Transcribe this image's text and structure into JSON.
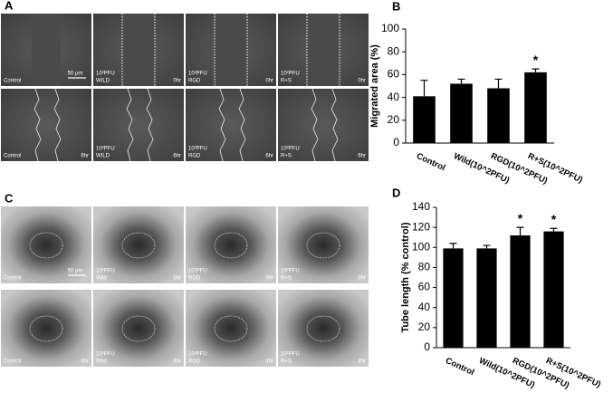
{
  "panels": [
    {
      "label": "A",
      "images": [
        {
          "left": [
            "Control"
          ],
          "scale": "50 μm"
        },
        {
          "left": [
            "10²PFU",
            "WILD"
          ],
          "right": "0hr"
        },
        {
          "left": [
            "10²PFU",
            "RGD"
          ],
          "right": "0hr"
        },
        {
          "left": [
            "10²PFU",
            "R+S"
          ],
          "right": "0hr"
        },
        {
          "left": [
            "Control"
          ],
          "right": "6hr"
        },
        {
          "left": [
            "10²PFU",
            "WILD"
          ],
          "right": "6hr"
        },
        {
          "left": [
            "10²PFU",
            "RGD"
          ],
          "right": "6hr"
        },
        {
          "left": [
            "10²PFU",
            "R+S"
          ],
          "right": "6hr"
        }
      ]
    },
    {
      "label": "C",
      "images": [
        {
          "left": [
            "Control"
          ],
          "scale": "50 μm"
        },
        {
          "left": [
            "10²PFU",
            "Wild"
          ],
          "right": "0hr"
        },
        {
          "left": [
            "10²PFU",
            "RGD"
          ],
          "right": "0hr"
        },
        {
          "left": [
            "10²PFU",
            "R+S"
          ],
          "right": "0hr"
        },
        {
          "left": [
            "Control"
          ],
          "right": "4hr"
        },
        {
          "left": [
            "10²PFU",
            "Wild"
          ],
          "right": "4hr"
        },
        {
          "left": [
            "10²PFU",
            "RGD"
          ],
          "right": "4hr"
        },
        {
          "left": [
            "10²PFU",
            "R+S"
          ],
          "right": "4hr"
        }
      ]
    }
  ],
  "chart_data": [
    {
      "type": "bar",
      "label": "B",
      "y_label": "Migrated area (%)",
      "categories": [
        "Control",
        "Wild(10^2PFU)",
        "RGD(10^2PFU)",
        "R+S(10^2PFU)"
      ],
      "values": [
        41,
        52,
        48,
        62
      ],
      "errors": [
        14,
        4,
        8,
        3
      ],
      "significance": [
        null,
        null,
        null,
        "*"
      ],
      "color": "#000000",
      "ylim": [
        0,
        100
      ],
      "yticks": [
        0,
        20,
        40,
        60,
        80,
        100
      ]
    },
    {
      "type": "bar",
      "label": "D",
      "y_label": "Tube length (% control)",
      "categories": [
        "Control",
        "Wild(10^2PFU)",
        "RGD(10^2PFU)",
        "R+S(10^2PFU)"
      ],
      "values": [
        99,
        99,
        112,
        116
      ],
      "errors": [
        5,
        3,
        8,
        3
      ],
      "significance": [
        null,
        null,
        "*",
        "*"
      ],
      "color": "#000000",
      "ylim": [
        0,
        140
      ],
      "yticks": [
        0,
        20,
        40,
        60,
        80,
        100,
        120,
        140
      ]
    }
  ]
}
